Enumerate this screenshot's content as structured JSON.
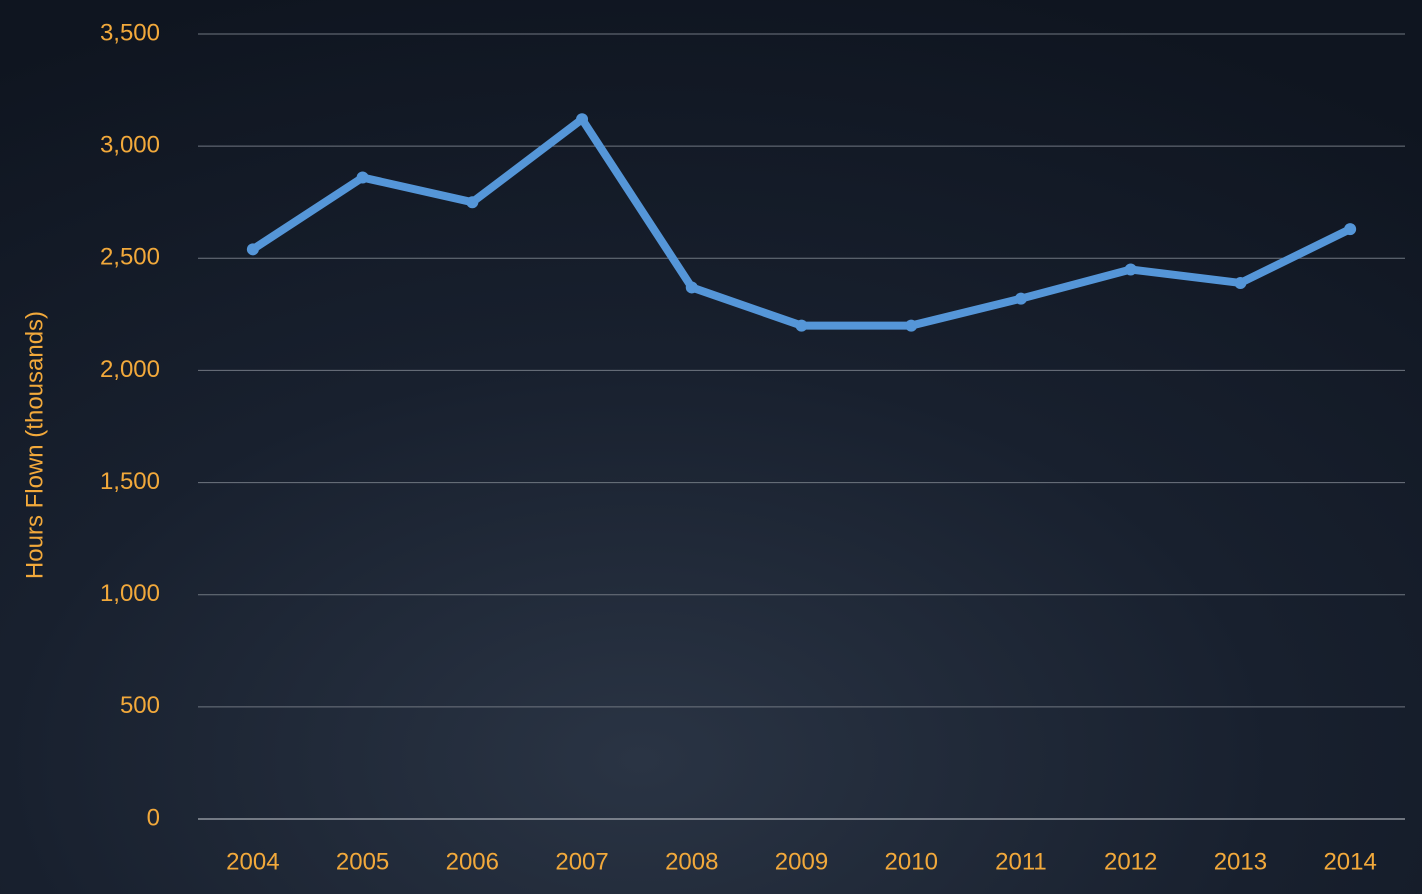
{
  "chart_data": {
    "type": "line",
    "y_label": "Hours Flown (thousands)",
    "categories": [
      "2004",
      "2005",
      "2006",
      "2007",
      "2008",
      "2009",
      "2010",
      "2011",
      "2012",
      "2013",
      "2014"
    ],
    "series": [
      {
        "name": "Hours Flown",
        "color": "#5596d8",
        "values": [
          2540,
          2860,
          2750,
          3120,
          2370,
          2200,
          2200,
          2320,
          2450,
          2390,
          2630
        ]
      }
    ],
    "ylim": [
      0,
      3500
    ],
    "yticks": [
      0,
      500,
      {
        "value": 1000,
        "label": "1,000"
      },
      {
        "value": 1500,
        "label": "1,500"
      },
      {
        "value": 2000,
        "label": "2,000"
      },
      {
        "value": 2500,
        "label": "2,500"
      },
      {
        "value": 3000,
        "label": "3,000"
      },
      {
        "value": 3500,
        "label": "3,500"
      }
    ],
    "grid": true
  }
}
